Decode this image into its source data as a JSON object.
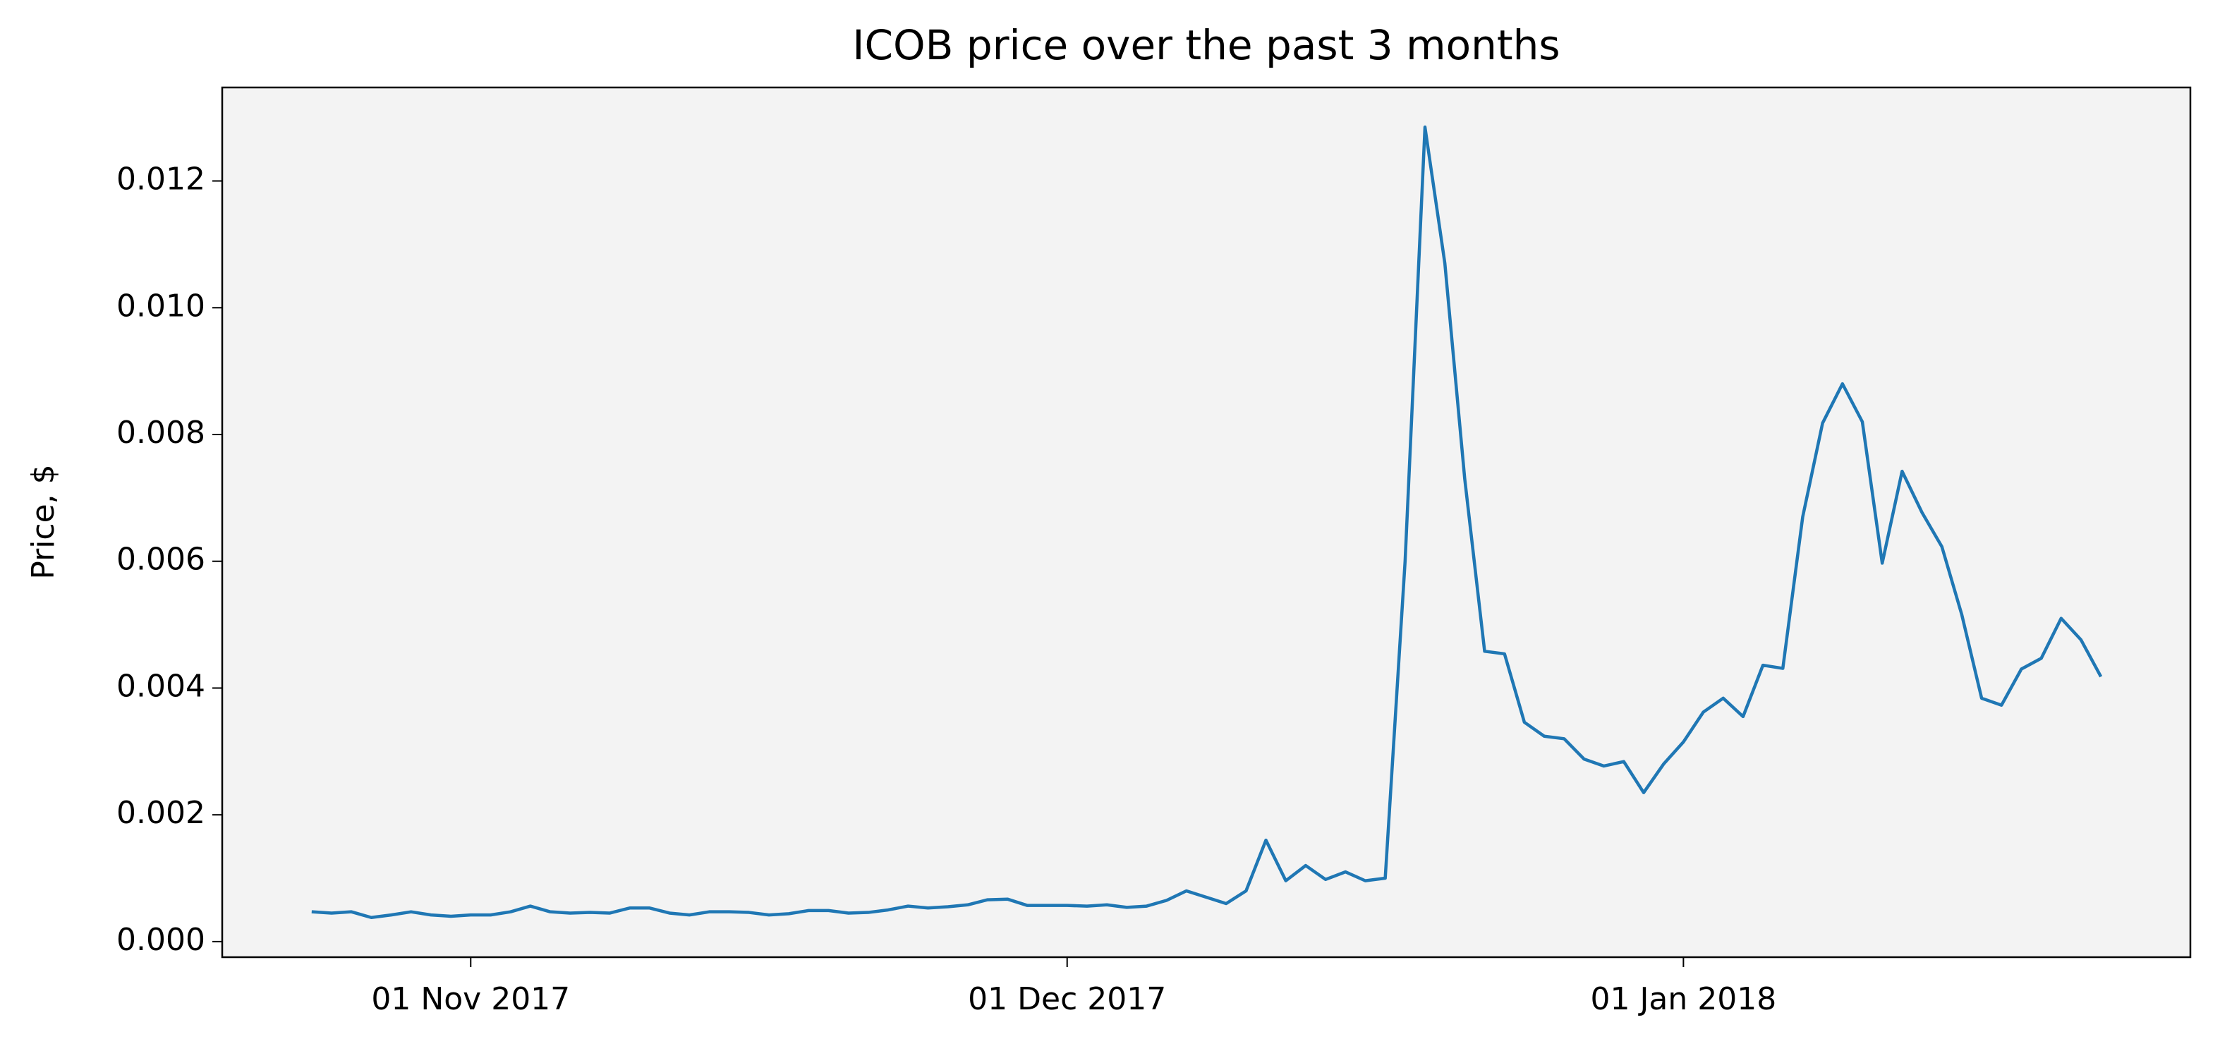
{
  "chart_data": {
    "type": "line",
    "title": "ICOB price over the past 3 months",
    "ylabel": "Price, $",
    "x": [
      "2017-10-24",
      "2017-10-25",
      "2017-10-26",
      "2017-10-27",
      "2017-10-28",
      "2017-10-29",
      "2017-10-30",
      "2017-10-31",
      "2017-11-01",
      "2017-11-02",
      "2017-11-03",
      "2017-11-04",
      "2017-11-05",
      "2017-11-06",
      "2017-11-07",
      "2017-11-08",
      "2017-11-09",
      "2017-11-10",
      "2017-11-11",
      "2017-11-12",
      "2017-11-13",
      "2017-11-14",
      "2017-11-15",
      "2017-11-16",
      "2017-11-17",
      "2017-11-18",
      "2017-11-19",
      "2017-11-20",
      "2017-11-21",
      "2017-11-22",
      "2017-11-23",
      "2017-11-24",
      "2017-11-25",
      "2017-11-26",
      "2017-11-27",
      "2017-11-28",
      "2017-11-29",
      "2017-11-30",
      "2017-12-01",
      "2017-12-02",
      "2017-12-03",
      "2017-12-04",
      "2017-12-05",
      "2017-12-06",
      "2017-12-07",
      "2017-12-08",
      "2017-12-09",
      "2017-12-10",
      "2017-12-11",
      "2017-12-12",
      "2017-12-13",
      "2017-12-14",
      "2017-12-15",
      "2017-12-16",
      "2017-12-17",
      "2017-12-18",
      "2017-12-19",
      "2017-12-20",
      "2017-12-21",
      "2017-12-22",
      "2017-12-23",
      "2017-12-24",
      "2017-12-25",
      "2017-12-26",
      "2017-12-27",
      "2017-12-28",
      "2017-12-29",
      "2017-12-30",
      "2017-12-31",
      "2018-01-01",
      "2018-01-02",
      "2018-01-03",
      "2018-01-04",
      "2018-01-05",
      "2018-01-06",
      "2018-01-07",
      "2018-01-08",
      "2018-01-09",
      "2018-01-10",
      "2018-01-11",
      "2018-01-12",
      "2018-01-13",
      "2018-01-14",
      "2018-01-15",
      "2018-01-16",
      "2018-01-17",
      "2018-01-18",
      "2018-01-19",
      "2018-01-20",
      "2018-01-21",
      "2018-01-22"
    ],
    "series": [
      {
        "name": "ICOB",
        "color": "#1f77b4",
        "values": [
          0.00047,
          0.00045,
          0.00047,
          0.00038,
          0.00042,
          0.00047,
          0.00042,
          0.0004,
          0.00042,
          0.00042,
          0.00047,
          0.00056,
          0.00047,
          0.00045,
          0.00046,
          0.00045,
          0.00053,
          0.00053,
          0.00045,
          0.00042,
          0.00047,
          0.00047,
          0.00046,
          0.00042,
          0.00044,
          0.00049,
          0.00049,
          0.00045,
          0.00046,
          0.0005,
          0.00056,
          0.00053,
          0.00055,
          0.00058,
          0.00066,
          0.00067,
          0.00057,
          0.00057,
          0.00057,
          0.00056,
          0.00058,
          0.00054,
          0.00056,
          0.00065,
          0.0008,
          0.0007,
          0.0006,
          0.0008,
          0.0016,
          0.00096,
          0.0012,
          0.00098,
          0.0011,
          0.00096,
          0.001,
          0.006,
          0.01285,
          0.0107,
          0.0073,
          0.00458,
          0.00454,
          0.00346,
          0.00324,
          0.0032,
          0.00288,
          0.00277,
          0.00284,
          0.00235,
          0.0028,
          0.00315,
          0.00362,
          0.00384,
          0.00355,
          0.00436,
          0.00431,
          0.0067,
          0.00818,
          0.0088,
          0.0082,
          0.00597,
          0.00742,
          0.00677,
          0.00623,
          0.00516,
          0.00384,
          0.00373,
          0.0043,
          0.00447,
          0.0051,
          0.00476,
          0.00418
        ]
      }
    ],
    "xlim": [
      "2017-10-19T12:00Z",
      "2018-01-26T12:00Z"
    ],
    "xticks": [
      {
        "value": "2017-11-01",
        "label": "01 Nov 2017"
      },
      {
        "value": "2017-12-01",
        "label": "01 Dec 2017"
      },
      {
        "value": "2018-01-01",
        "label": "01 Jan 2018"
      }
    ],
    "ylim": [
      -0.000246,
      0.013475
    ],
    "yticks": [
      {
        "value": 0,
        "label": "0.000"
      },
      {
        "value": 0.002,
        "label": "0.002"
      },
      {
        "value": 0.004,
        "label": "0.004"
      },
      {
        "value": 0.006,
        "label": "0.006"
      },
      {
        "value": 0.008,
        "label": "0.008"
      },
      {
        "value": 0.01,
        "label": "0.010"
      },
      {
        "value": 0.012,
        "label": "0.012"
      }
    ],
    "background": "#f3f3f3"
  }
}
